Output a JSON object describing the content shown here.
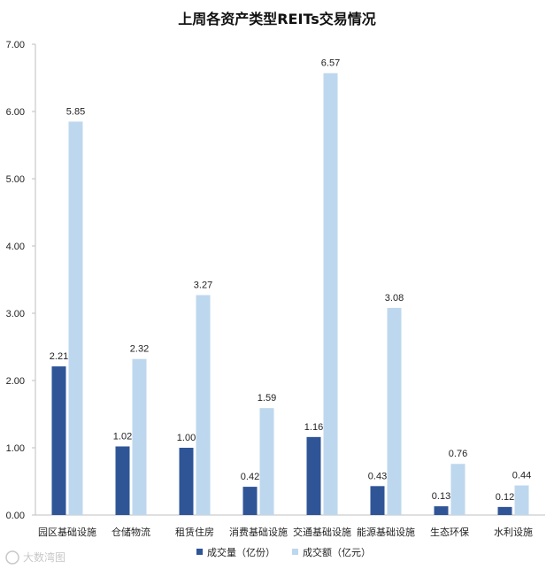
{
  "chart_data": {
    "type": "bar",
    "title": "上周各资产类型REITs交易情况",
    "categories": [
      "园区基础设施",
      "仓储物流",
      "租赁住房",
      "消费基础设施",
      "交通基础设施",
      "能源基础设施",
      "生态环保",
      "水利设施"
    ],
    "series": [
      {
        "name": "成交量（亿份）",
        "color": "#2f5597",
        "values": [
          2.21,
          1.02,
          1.0,
          0.42,
          1.16,
          0.43,
          0.13,
          0.12
        ]
      },
      {
        "name": "成交额（亿元）",
        "color": "#bdd7ee",
        "values": [
          5.85,
          2.32,
          3.27,
          1.59,
          6.57,
          3.08,
          0.76,
          0.44
        ]
      }
    ],
    "y_ticks": [
      "0.00",
      "1.00",
      "2.00",
      "3.00",
      "4.00",
      "5.00",
      "6.00",
      "7.00"
    ],
    "ylim": [
      0,
      7
    ],
    "grid": false,
    "legend_position": "bottom"
  },
  "watermark": "大数湾图"
}
